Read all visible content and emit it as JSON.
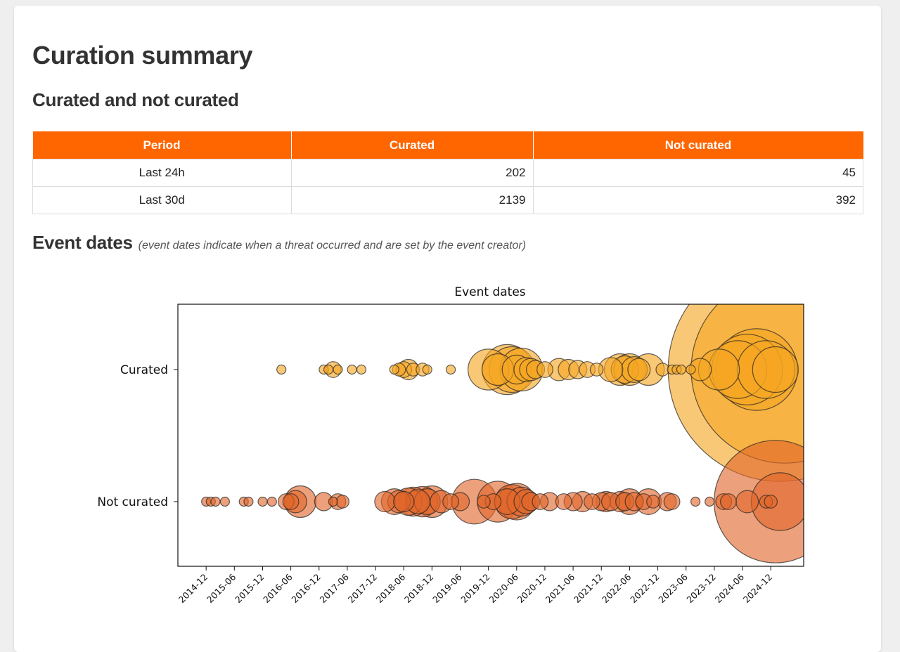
{
  "page": {
    "title": "Curation summary",
    "section1_title": "Curated and not curated",
    "section2_title": "Event dates",
    "section2_note": "(event dates indicate when a threat occurred and are set by the event creator)"
  },
  "summary_table": {
    "headers": [
      "Period",
      "Curated",
      "Not curated"
    ],
    "rows": [
      {
        "period": "Last 24h",
        "curated": "202",
        "not_curated": "45"
      },
      {
        "period": "Last 30d",
        "curated": "2139",
        "not_curated": "392"
      }
    ]
  },
  "colors": {
    "accent": "#ff6600",
    "curated": "#f5a623",
    "not_curated": "#e0662a"
  },
  "chart_data": {
    "type": "scatter",
    "title": "Event dates",
    "categories": [
      "Curated",
      "Not curated"
    ],
    "x_ticks": [
      "2014-12",
      "2015-06",
      "2015-12",
      "2016-06",
      "2016-12",
      "2017-06",
      "2017-12",
      "2018-06",
      "2018-12",
      "2019-06",
      "2019-12",
      "2020-06",
      "2020-12",
      "2021-06",
      "2021-12",
      "2022-06",
      "2022-12",
      "2023-06",
      "2023-12",
      "2024-06",
      "2024-12"
    ],
    "xlim": [
      "2014-06",
      "2025-07"
    ],
    "grid": false,
    "legend": "none",
    "marker_size": "event count (relative)",
    "series": [
      {
        "name": "Curated",
        "points": [
          [
            "2016-04",
            1
          ],
          [
            "2017-01",
            1
          ],
          [
            "2017-02",
            1
          ],
          [
            "2017-03",
            3
          ],
          [
            "2017-04",
            1
          ],
          [
            "2017-07",
            1
          ],
          [
            "2017-09",
            1
          ],
          [
            "2018-04",
            1
          ],
          [
            "2018-05",
            2
          ],
          [
            "2018-06",
            3
          ],
          [
            "2018-07",
            5
          ],
          [
            "2018-08",
            2
          ],
          [
            "2018-10",
            2
          ],
          [
            "2018-11",
            1
          ],
          [
            "2019-04",
            1
          ],
          [
            "2019-12",
            20
          ],
          [
            "2020-02",
            12
          ],
          [
            "2020-04",
            30
          ],
          [
            "2020-05",
            25
          ],
          [
            "2020-06",
            10
          ],
          [
            "2020-07",
            22
          ],
          [
            "2020-08",
            7
          ],
          [
            "2020-09",
            6
          ],
          [
            "2020-10",
            4
          ],
          [
            "2020-12",
            3
          ],
          [
            "2021-03",
            6
          ],
          [
            "2021-05",
            5
          ],
          [
            "2021-07",
            4
          ],
          [
            "2021-09",
            3
          ],
          [
            "2021-11",
            2
          ],
          [
            "2022-02",
            7
          ],
          [
            "2022-04",
            12
          ],
          [
            "2022-05",
            9
          ],
          [
            "2022-06",
            12
          ],
          [
            "2022-07",
            8
          ],
          [
            "2022-08",
            6
          ],
          [
            "2022-10",
            12
          ],
          [
            "2023-01",
            2
          ],
          [
            "2023-03",
            1
          ],
          [
            "2023-04",
            1
          ],
          [
            "2023-05",
            1
          ],
          [
            "2023-07",
            1
          ],
          [
            "2023-09",
            6
          ],
          [
            "2024-01",
            20
          ],
          [
            "2024-05",
            40
          ],
          [
            "2024-07",
            60
          ],
          [
            "2024-09",
            80
          ],
          [
            "2024-11",
            40
          ],
          [
            "2025-01",
            25
          ],
          [
            "2025-02",
            600
          ],
          [
            "2025-03",
            420
          ]
        ]
      },
      {
        "name": "Not curated",
        "points": [
          [
            "2014-12",
            1
          ],
          [
            "2015-01",
            1
          ],
          [
            "2015-02",
            1
          ],
          [
            "2015-04",
            1
          ],
          [
            "2015-08",
            1
          ],
          [
            "2015-09",
            1
          ],
          [
            "2015-12",
            1
          ],
          [
            "2016-02",
            1
          ],
          [
            "2016-05",
            3
          ],
          [
            "2016-06",
            3
          ],
          [
            "2016-07",
            6
          ],
          [
            "2016-08",
            12
          ],
          [
            "2017-01",
            4
          ],
          [
            "2017-03",
            1
          ],
          [
            "2017-04",
            3
          ],
          [
            "2017-05",
            2
          ],
          [
            "2018-02",
            5
          ],
          [
            "2018-04",
            8
          ],
          [
            "2018-05",
            6
          ],
          [
            "2018-06",
            5
          ],
          [
            "2018-07",
            9
          ],
          [
            "2018-08",
            10
          ],
          [
            "2018-09",
            7
          ],
          [
            "2018-10",
            11
          ],
          [
            "2018-11",
            8
          ],
          [
            "2018-12",
            12
          ],
          [
            "2019-02",
            6
          ],
          [
            "2019-04",
            3
          ],
          [
            "2019-06",
            4
          ],
          [
            "2019-09",
            24
          ],
          [
            "2019-11",
            2
          ],
          [
            "2020-01",
            3
          ],
          [
            "2020-02",
            20
          ],
          [
            "2020-04",
            8
          ],
          [
            "2020-05",
            14
          ],
          [
            "2020-06",
            16
          ],
          [
            "2020-07",
            10
          ],
          [
            "2020-08",
            7
          ],
          [
            "2020-09",
            4
          ],
          [
            "2020-11",
            3
          ],
          [
            "2021-01",
            4
          ],
          [
            "2021-04",
            3
          ],
          [
            "2021-06",
            4
          ],
          [
            "2021-08",
            5
          ],
          [
            "2021-10",
            3
          ],
          [
            "2021-12",
            4
          ],
          [
            "2022-01",
            5
          ],
          [
            "2022-02",
            4
          ],
          [
            "2022-04",
            5
          ],
          [
            "2022-05",
            4
          ],
          [
            "2022-06",
            8
          ],
          [
            "2022-07",
            4
          ],
          [
            "2022-09",
            3
          ],
          [
            "2022-10",
            8
          ],
          [
            "2022-11",
            2
          ],
          [
            "2023-02",
            4
          ],
          [
            "2023-03",
            3
          ],
          [
            "2023-08",
            1
          ],
          [
            "2023-11",
            1
          ],
          [
            "2024-02",
            3
          ],
          [
            "2024-03",
            3
          ],
          [
            "2024-07",
            6
          ],
          [
            "2024-11",
            2
          ],
          [
            "2024-12",
            2
          ],
          [
            "2025-01",
            180
          ],
          [
            "2025-02",
            40
          ]
        ]
      }
    ]
  }
}
